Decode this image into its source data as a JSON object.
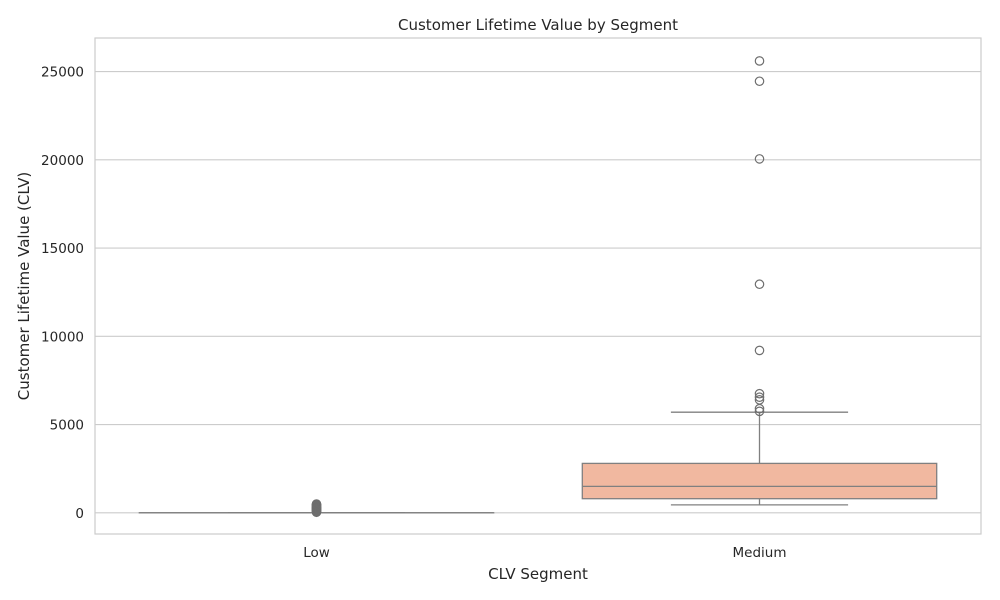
{
  "chart_data": {
    "type": "box",
    "title": "Customer Lifetime Value by Segment",
    "xlabel": "CLV Segment",
    "ylabel": "Customer Lifetime Value (CLV)",
    "categories": [
      "Low",
      "Medium"
    ],
    "ylim": [
      -1200,
      26900
    ],
    "yticks": [
      0,
      5000,
      10000,
      15000,
      20000,
      25000
    ],
    "grid": true,
    "boxes": [
      {
        "category": "Low",
        "whisker_low": 0,
        "q1": 0,
        "median": 0,
        "q3": 0,
        "whisker_high": 0,
        "color": "#ffffff",
        "outliers": [
          30,
          60,
          90,
          120,
          150,
          180,
          210,
          240,
          270,
          300,
          330,
          360,
          390,
          420,
          450,
          480,
          500
        ]
      },
      {
        "category": "Medium",
        "whisker_low": 450,
        "q1": 800,
        "median": 1500,
        "q3": 2800,
        "whisker_high": 5700,
        "color": "#f1b8a0",
        "outliers": [
          5750,
          5900,
          6400,
          6550,
          6750,
          9200,
          12950,
          20050,
          24450,
          25600
        ]
      }
    ],
    "colors": {
      "line": "#808080",
      "grid": "#cccccc",
      "frame": "#cccccc",
      "text": "#262626"
    }
  }
}
